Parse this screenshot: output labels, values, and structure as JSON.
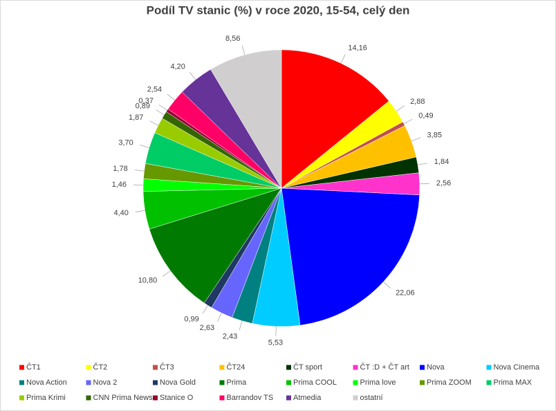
{
  "chart_data": {
    "type": "pie",
    "title": "Podíl TV stanic (%) v roce 2020, 15-54, celý den",
    "categories": [
      "ČT1",
      "ČT2",
      "ČT3",
      "ČT24",
      "ČT sport",
      "ČT :D + ČT art",
      "Nova",
      "Nova Cinema",
      "Nova Action",
      "Nova 2",
      "Nova Gold",
      "Prima",
      "Prima COOL",
      "Prima love",
      "Prima ZOOM",
      "Prima MAX",
      "Prima Krimi",
      "CNN Prima News",
      "Stanice O",
      "Barrandov TS",
      "Atmedia",
      "ostatní"
    ],
    "values": [
      14.16,
      2.88,
      0.49,
      3.85,
      1.84,
      2.56,
      22.06,
      5.53,
      2.43,
      2.63,
      0.99,
      10.8,
      4.4,
      1.46,
      1.78,
      3.7,
      1.87,
      0.89,
      0.37,
      2.54,
      4.2,
      8.56
    ],
    "value_labels": [
      "14,16",
      "2,88",
      "0,49",
      "3,85",
      "1,84",
      "2,56",
      "22,06",
      "5,53",
      "2,43",
      "2,63",
      "0,99",
      "10,80",
      "4,40",
      "1,46",
      "1,78",
      "3,70",
      "1,87",
      "0,89",
      "0,37",
      "2,54",
      "4,20",
      "8,56"
    ],
    "colors": [
      "#ff0000",
      "#ffff00",
      "#c0504d",
      "#ffc000",
      "#003300",
      "#ff33cc",
      "#0000ff",
      "#00ccff",
      "#008080",
      "#6666ff",
      "#1f3864",
      "#007a00",
      "#00c000",
      "#00ff00",
      "#669900",
      "#00cc66",
      "#99cc00",
      "#336600",
      "#990033",
      "#ff0066",
      "#663399",
      "#d0cece"
    ],
    "legend": "bottom"
  }
}
